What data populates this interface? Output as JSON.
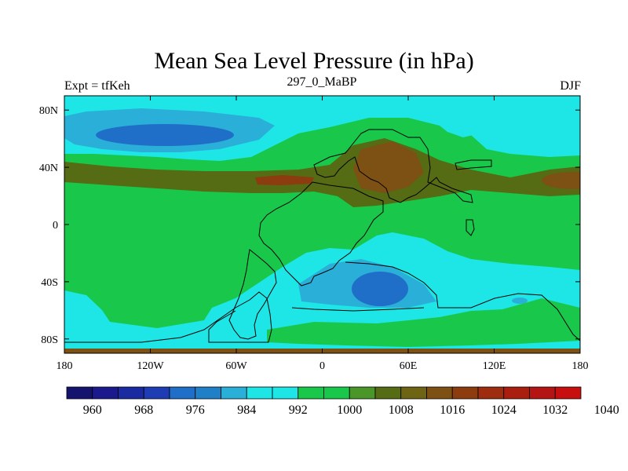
{
  "title": "Mean Sea Level Pressure (in hPa)",
  "subtitle_left": "Expt = tfKeh",
  "subtitle_center": "297_0_MaBP",
  "subtitle_right": "DJF",
  "map": {
    "lon_range": [
      -180,
      180
    ],
    "lat_range": [
      -90,
      90
    ],
    "x_ticks": [
      {
        "lon": -180,
        "label": "180"
      },
      {
        "lon": -120,
        "label": "120W"
      },
      {
        "lon": -60,
        "label": "60W"
      },
      {
        "lon": 0,
        "label": "0"
      },
      {
        "lon": 60,
        "label": "60E"
      },
      {
        "lon": 120,
        "label": "120E"
      },
      {
        "lon": 180,
        "label": "180"
      }
    ],
    "y_ticks": [
      {
        "lat": 80,
        "label": "80N"
      },
      {
        "lat": 40,
        "label": "40N"
      },
      {
        "lat": 0,
        "label": "0"
      },
      {
        "lat": -40,
        "label": "40S"
      },
      {
        "lat": -80,
        "label": "80S"
      }
    ]
  },
  "colorbar": {
    "colors": [
      "#14146e",
      "#1a1a8c",
      "#1a2aa0",
      "#1e3cb4",
      "#1f6ec8",
      "#1f80c8",
      "#2ab0d8",
      "#1ee6e6",
      "#1ee6e6",
      "#19c84b",
      "#19c84b",
      "#4b9628",
      "#556b14",
      "#6e6414",
      "#7d5014",
      "#8c3c0f",
      "#9e2d0f",
      "#aa1e0f",
      "#b41414",
      "#c80f0f"
    ],
    "labels": [
      "960",
      "968",
      "976",
      "984",
      "992",
      "1000",
      "1008",
      "1016",
      "1024",
      "1032",
      "1040"
    ]
  },
  "legend_colors": {
    "ocean_blue_high": "#1ee6e6",
    "mid_blue": "#2ab0d8",
    "deep_blue": "#1f6ec8",
    "green": "#19c84b",
    "olive": "#556b14",
    "brown": "#7d5014",
    "rust": "#9e2d0f"
  }
}
